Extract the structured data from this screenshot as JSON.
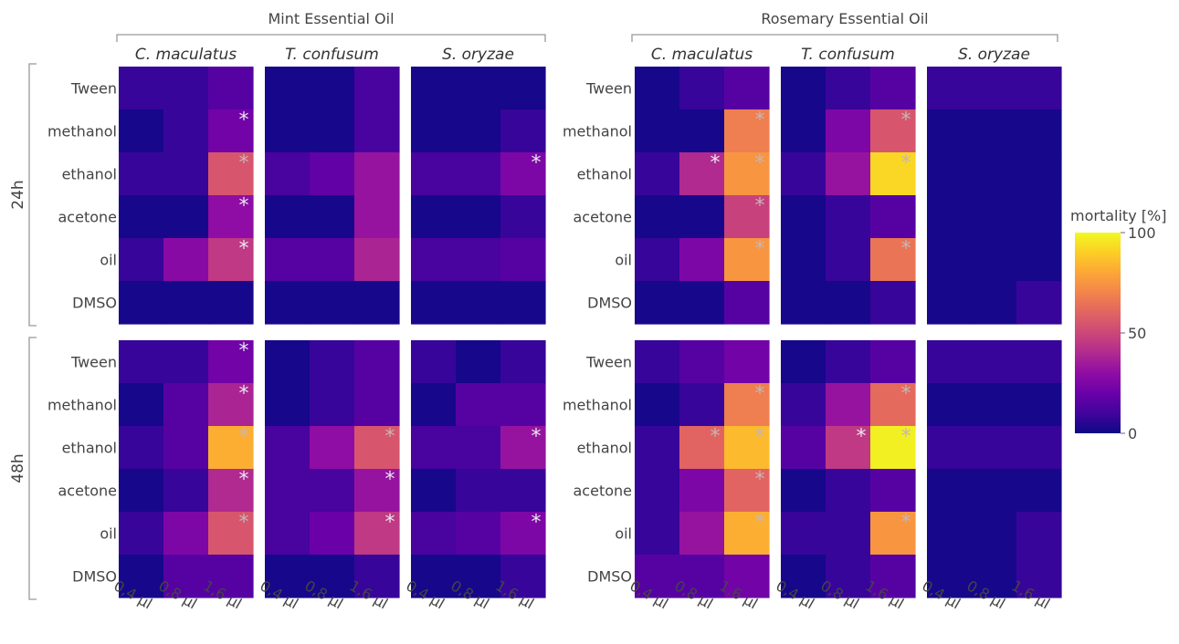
{
  "chart_data": {
    "type": "heatmap",
    "colorbar": {
      "title": "mortality [%]",
      "range": [
        0,
        100
      ],
      "ticks": [
        "0",
        "50",
        "100"
      ],
      "colorscale": "plasma"
    },
    "oil_labels": [
      "Mint Essential Oil",
      "Rosemary Essential Oil"
    ],
    "species": [
      "C. maculatus",
      "T. confusum",
      "S. oryzae"
    ],
    "time_labels": [
      "24h",
      "48h"
    ],
    "rows": [
      "Tween",
      "methanol",
      "ethanol",
      "acetone",
      "oil",
      "DMSO"
    ],
    "doses": [
      "0,4 µl",
      "0,8 µl",
      "1,6 µl"
    ],
    "panels": [
      {
        "oil": "Mint Essential Oil",
        "time": "24h",
        "species": "C. maculatus",
        "values": [
          [
            8,
            8,
            15
          ],
          [
            2,
            8,
            22
          ],
          [
            8,
            8,
            55
          ],
          [
            2,
            2,
            30
          ],
          [
            8,
            28,
            45
          ],
          [
            2,
            2,
            2
          ]
        ],
        "sig": [
          [
            0,
            0,
            0
          ],
          [
            0,
            0,
            1
          ],
          [
            0,
            0,
            1
          ],
          [
            0,
            0,
            1
          ],
          [
            0,
            0,
            1
          ],
          [
            0,
            0,
            0
          ]
        ]
      },
      {
        "oil": "Mint Essential Oil",
        "time": "24h",
        "species": "T. confusum",
        "values": [
          [
            2,
            2,
            12
          ],
          [
            2,
            2,
            12
          ],
          [
            12,
            18,
            32
          ],
          [
            2,
            2,
            32
          ],
          [
            15,
            15,
            38
          ],
          [
            2,
            2,
            2
          ]
        ],
        "sig": [
          [
            0,
            0,
            0
          ],
          [
            0,
            0,
            0
          ],
          [
            0,
            0,
            0
          ],
          [
            0,
            0,
            0
          ],
          [
            0,
            0,
            0
          ],
          [
            0,
            0,
            0
          ]
        ]
      },
      {
        "oil": "Mint Essential Oil",
        "time": "24h",
        "species": "S. oryzae",
        "values": [
          [
            2,
            2,
            2
          ],
          [
            2,
            2,
            8
          ],
          [
            12,
            12,
            25
          ],
          [
            2,
            2,
            8
          ],
          [
            12,
            12,
            15
          ],
          [
            2,
            2,
            2
          ]
        ],
        "sig": [
          [
            0,
            0,
            0
          ],
          [
            0,
            0,
            0
          ],
          [
            0,
            0,
            1
          ],
          [
            0,
            0,
            0
          ],
          [
            0,
            0,
            0
          ],
          [
            0,
            0,
            0
          ]
        ]
      },
      {
        "oil": "Mint Essential Oil",
        "time": "48h",
        "species": "C. maculatus",
        "values": [
          [
            8,
            8,
            22
          ],
          [
            2,
            15,
            38
          ],
          [
            8,
            15,
            82
          ],
          [
            2,
            8,
            40
          ],
          [
            8,
            25,
            55
          ],
          [
            2,
            15,
            15
          ]
        ],
        "sig": [
          [
            0,
            0,
            1
          ],
          [
            0,
            0,
            1
          ],
          [
            0,
            0,
            1
          ],
          [
            0,
            0,
            1
          ],
          [
            0,
            0,
            1
          ],
          [
            0,
            0,
            0
          ]
        ]
      },
      {
        "oil": "Mint Essential Oil",
        "time": "48h",
        "species": "T. confusum",
        "values": [
          [
            2,
            8,
            15
          ],
          [
            2,
            8,
            15
          ],
          [
            12,
            30,
            55
          ],
          [
            12,
            12,
            32
          ],
          [
            12,
            20,
            45
          ],
          [
            2,
            2,
            8
          ]
        ],
        "sig": [
          [
            0,
            0,
            0
          ],
          [
            0,
            0,
            0
          ],
          [
            0,
            0,
            1
          ],
          [
            0,
            0,
            1
          ],
          [
            0,
            0,
            1
          ],
          [
            0,
            0,
            0
          ]
        ]
      },
      {
        "oil": "Mint Essential Oil",
        "time": "48h",
        "species": "S. oryzae",
        "values": [
          [
            8,
            2,
            8
          ],
          [
            2,
            15,
            15
          ],
          [
            12,
            12,
            32
          ],
          [
            2,
            8,
            8
          ],
          [
            12,
            15,
            25
          ],
          [
            2,
            2,
            8
          ]
        ],
        "sig": [
          [
            0,
            0,
            0
          ],
          [
            0,
            0,
            0
          ],
          [
            0,
            0,
            1
          ],
          [
            0,
            0,
            0
          ],
          [
            0,
            0,
            1
          ],
          [
            0,
            0,
            0
          ]
        ]
      },
      {
        "oil": "Rosemary Essential Oil",
        "time": "24h",
        "species": "C. maculatus",
        "values": [
          [
            2,
            8,
            15
          ],
          [
            2,
            2,
            68
          ],
          [
            8,
            40,
            75
          ],
          [
            2,
            2,
            48
          ],
          [
            8,
            25,
            75
          ],
          [
            2,
            2,
            15
          ]
        ],
        "sig": [
          [
            0,
            0,
            0
          ],
          [
            0,
            0,
            1
          ],
          [
            0,
            1,
            1
          ],
          [
            0,
            0,
            1
          ],
          [
            0,
            0,
            1
          ],
          [
            0,
            0,
            0
          ]
        ]
      },
      {
        "oil": "Rosemary Essential Oil",
        "time": "24h",
        "species": "T. confusum",
        "values": [
          [
            2,
            8,
            15
          ],
          [
            2,
            25,
            55
          ],
          [
            8,
            32,
            92
          ],
          [
            2,
            8,
            15
          ],
          [
            2,
            8,
            65
          ],
          [
            2,
            2,
            8
          ]
        ],
        "sig": [
          [
            0,
            0,
            0
          ],
          [
            0,
            0,
            1
          ],
          [
            0,
            0,
            1
          ],
          [
            0,
            0,
            0
          ],
          [
            0,
            0,
            1
          ],
          [
            0,
            0,
            0
          ]
        ]
      },
      {
        "oil": "Rosemary Essential Oil",
        "time": "24h",
        "species": "S. oryzae",
        "values": [
          [
            8,
            8,
            8
          ],
          [
            2,
            2,
            2
          ],
          [
            2,
            2,
            2
          ],
          [
            2,
            2,
            2
          ],
          [
            2,
            2,
            2
          ],
          [
            2,
            2,
            8
          ]
        ],
        "sig": [
          [
            0,
            0,
            0
          ],
          [
            0,
            0,
            0
          ],
          [
            0,
            0,
            0
          ],
          [
            0,
            0,
            0
          ],
          [
            0,
            0,
            0
          ],
          [
            0,
            0,
            0
          ]
        ]
      },
      {
        "oil": "Rosemary Essential Oil",
        "time": "48h",
        "species": "C. maculatus",
        "values": [
          [
            8,
            15,
            22
          ],
          [
            2,
            8,
            68
          ],
          [
            8,
            60,
            85
          ],
          [
            8,
            25,
            60
          ],
          [
            8,
            32,
            82
          ],
          [
            15,
            15,
            22
          ]
        ],
        "sig": [
          [
            0,
            0,
            0
          ],
          [
            0,
            0,
            1
          ],
          [
            0,
            1,
            1
          ],
          [
            0,
            0,
            1
          ],
          [
            0,
            0,
            1
          ],
          [
            0,
            0,
            0
          ]
        ]
      },
      {
        "oil": "Rosemary Essential Oil",
        "time": "48h",
        "species": "T. confusum",
        "values": [
          [
            2,
            8,
            15
          ],
          [
            8,
            32,
            62
          ],
          [
            15,
            45,
            98
          ],
          [
            2,
            8,
            15
          ],
          [
            8,
            8,
            75
          ],
          [
            2,
            8,
            15
          ]
        ],
        "sig": [
          [
            0,
            0,
            0
          ],
          [
            0,
            0,
            1
          ],
          [
            0,
            1,
            1
          ],
          [
            0,
            0,
            0
          ],
          [
            0,
            0,
            1
          ],
          [
            0,
            0,
            0
          ]
        ]
      },
      {
        "oil": "Rosemary Essential Oil",
        "time": "48h",
        "species": "S. oryzae",
        "values": [
          [
            8,
            8,
            8
          ],
          [
            2,
            2,
            2
          ],
          [
            8,
            8,
            8
          ],
          [
            2,
            2,
            2
          ],
          [
            2,
            2,
            8
          ],
          [
            2,
            2,
            8
          ]
        ],
        "sig": [
          [
            0,
            0,
            0
          ],
          [
            0,
            0,
            0
          ],
          [
            0,
            0,
            0
          ],
          [
            0,
            0,
            0
          ],
          [
            0,
            0,
            0
          ],
          [
            0,
            0,
            0
          ]
        ]
      }
    ]
  }
}
